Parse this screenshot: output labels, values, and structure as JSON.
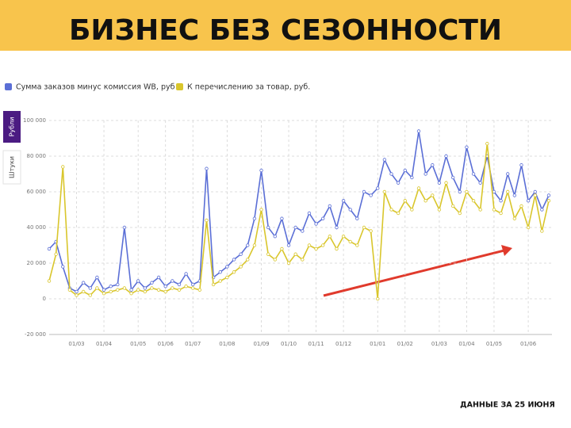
{
  "tabs": {
    "items": [
      "Рубли",
      "Штуки"
    ],
    "selected": 0
  },
  "chart_data": {
    "type": "line",
    "title": "БИЗНЕС БЕЗ СЕЗОННОСТИ",
    "annotation": "ДАННЫЕ ЗА 25 ИЮНЯ",
    "categories": [
      null,
      null,
      null,
      null,
      "01/03",
      null,
      null,
      null,
      "01/04",
      null,
      null,
      null,
      null,
      "01/05",
      null,
      null,
      null,
      "01/06",
      null,
      null,
      null,
      "01/07",
      null,
      null,
      null,
      null,
      "01/08",
      null,
      null,
      null,
      null,
      "01/09",
      null,
      null,
      null,
      "01/10",
      null,
      null,
      null,
      "01/11",
      null,
      null,
      null,
      "01/12",
      null,
      null,
      null,
      null,
      "01/01",
      null,
      null,
      null,
      "01/02",
      null,
      null,
      null,
      null,
      "01/03",
      null,
      null,
      null,
      "01/04",
      null,
      null,
      null,
      "01/05",
      null,
      null,
      null,
      null,
      "01/06",
      null,
      null,
      null
    ],
    "series": [
      {
        "name": "Сумма заказов минус комиссия WB, руб",
        "color": "#5b6fd6",
        "values": [
          28000,
          32000,
          18000,
          6000,
          4000,
          9000,
          6000,
          12000,
          5000,
          7000,
          8000,
          40000,
          5000,
          10000,
          6000,
          9000,
          12000,
          7000,
          10000,
          8000,
          14000,
          8000,
          10000,
          73000,
          12000,
          15000,
          18000,
          22000,
          25000,
          30000,
          45000,
          72000,
          40000,
          35000,
          45000,
          30000,
          40000,
          38000,
          48000,
          42000,
          45000,
          52000,
          40000,
          55000,
          50000,
          45000,
          60000,
          58000,
          62000,
          78000,
          70000,
          65000,
          72000,
          68000,
          94000,
          70000,
          75000,
          65000,
          80000,
          68000,
          60000,
          85000,
          70000,
          65000,
          80000,
          60000,
          55000,
          70000,
          58000,
          75000,
          55000,
          60000,
          50000,
          58000
        ]
      },
      {
        "name": "К перечислению за товар, руб.",
        "color": "#d9c62c",
        "values": [
          10000,
          25000,
          74000,
          5000,
          2000,
          4000,
          2000,
          6000,
          3000,
          4000,
          5000,
          6000,
          3000,
          5000,
          4000,
          6000,
          5000,
          4000,
          6000,
          5000,
          7000,
          6000,
          5000,
          44000,
          8000,
          10000,
          12000,
          15000,
          18000,
          22000,
          30000,
          50000,
          25000,
          22000,
          28000,
          20000,
          25000,
          22000,
          30000,
          28000,
          30000,
          35000,
          28000,
          35000,
          32000,
          30000,
          40000,
          38000,
          0,
          60000,
          50000,
          48000,
          55000,
          50000,
          62000,
          55000,
          58000,
          50000,
          65000,
          52000,
          48000,
          60000,
          55000,
          50000,
          87000,
          50000,
          48000,
          60000,
          45000,
          52000,
          40000,
          58000,
          38000,
          55000
        ]
      }
    ],
    "ylim": [
      -20000,
      100000
    ],
    "yticks": [
      {
        "value": -20000,
        "label": "-20 000"
      },
      0,
      {
        "value": 20000,
        "label": "20 000"
      },
      {
        "value": 40000,
        "label": "40 000"
      },
      {
        "value": 60000,
        "label": "60 000"
      },
      {
        "value": 80000,
        "label": "80 000"
      },
      {
        "value": 100000,
        "label": "100 000"
      }
    ],
    "grid": true
  }
}
